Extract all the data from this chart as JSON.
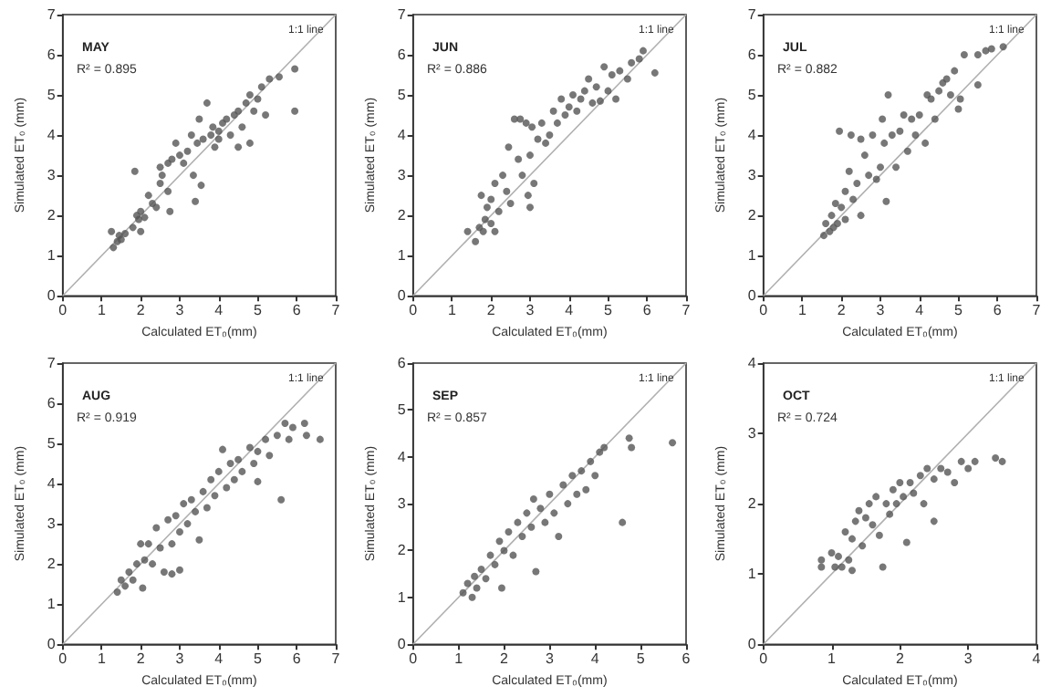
{
  "chart_data": [
    {
      "type": "scatter",
      "title": "MAY",
      "xlabel": "Calculated ET₀(mm)",
      "ylabel": "Simulated ET₀ (mm)",
      "annotations": [
        "R² = 0.895"
      ],
      "marker": "circle",
      "xlim": [
        0,
        7
      ],
      "ylim": [
        0,
        7
      ],
      "xticks": [
        0,
        1,
        2,
        3,
        4,
        5,
        6,
        7
      ],
      "yticks": [
        0,
        1,
        2,
        3,
        4,
        5,
        6,
        7
      ],
      "series": [
        {
          "type": "line",
          "name": "1:1 line",
          "color": "#b0b0b0",
          "marker": "none",
          "x": [
            0,
            7
          ],
          "values": [
            0,
            7
          ]
        },
        {
          "color": "#555555",
          "x": [
            1.3,
            1.25,
            1.4,
            1.45,
            1.5,
            1.6,
            1.8,
            1.85,
            1.9,
            1.95,
            2.0,
            2.0,
            2.1,
            2.2,
            2.3,
            2.4,
            2.5,
            2.5,
            2.55,
            2.7,
            2.7,
            2.75,
            2.8,
            2.9,
            3.0,
            3.1,
            3.2,
            3.3,
            3.35,
            3.4,
            3.45,
            3.5,
            3.55,
            3.6,
            3.7,
            3.8,
            3.85,
            3.9,
            4.0,
            4.0,
            4.1,
            4.2,
            4.3,
            4.4,
            4.5,
            4.5,
            4.6,
            4.7,
            4.8,
            4.8,
            4.9,
            5.0,
            5.1,
            5.2,
            5.3,
            5.55,
            5.95,
            5.95
          ],
          "values": [
            1.2,
            1.6,
            1.35,
            1.5,
            1.4,
            1.55,
            1.7,
            3.1,
            2.0,
            1.9,
            1.6,
            2.1,
            1.95,
            2.5,
            2.3,
            2.2,
            3.2,
            2.8,
            3.0,
            3.3,
            2.6,
            2.1,
            3.4,
            3.8,
            3.5,
            3.3,
            3.6,
            4.0,
            3.0,
            2.35,
            3.8,
            4.4,
            2.75,
            3.9,
            4.8,
            4.0,
            4.2,
            3.7,
            4.1,
            3.9,
            4.3,
            4.4,
            4.0,
            4.5,
            3.7,
            4.6,
            4.2,
            4.8,
            3.8,
            5.0,
            4.6,
            4.9,
            5.2,
            4.5,
            5.4,
            5.45,
            5.65,
            4.6
          ]
        }
      ]
    },
    {
      "type": "scatter",
      "title": "JUN",
      "xlabel": "Calculated ET₀(mm)",
      "ylabel": "Simulated ET₀ (mm)",
      "annotations": [
        "R² = 0.886"
      ],
      "marker": "circle",
      "xlim": [
        0,
        7
      ],
      "ylim": [
        0,
        7
      ],
      "xticks": [
        0,
        1,
        2,
        3,
        4,
        5,
        6,
        7
      ],
      "yticks": [
        0,
        1,
        2,
        3,
        4,
        5,
        6,
        7
      ],
      "series": [
        {
          "type": "line",
          "name": "1:1 line",
          "color": "#b0b0b0",
          "marker": "none",
          "x": [
            0,
            7
          ],
          "values": [
            0,
            7
          ]
        },
        {
          "color": "#555555",
          "x": [
            1.4,
            1.6,
            1.7,
            1.75,
            1.8,
            1.85,
            1.9,
            2.0,
            2.0,
            2.1,
            2.1,
            2.2,
            2.3,
            2.4,
            2.45,
            2.5,
            2.6,
            2.7,
            2.75,
            2.8,
            2.9,
            2.95,
            3.0,
            3.0,
            3.05,
            3.1,
            3.2,
            3.3,
            3.4,
            3.5,
            3.6,
            3.7,
            3.8,
            3.9,
            4.0,
            4.1,
            4.2,
            4.3,
            4.4,
            4.5,
            4.6,
            4.7,
            4.8,
            4.9,
            5.0,
            5.1,
            5.2,
            5.3,
            5.5,
            5.6,
            5.8,
            5.9,
            6.2
          ],
          "values": [
            1.6,
            1.35,
            1.7,
            2.5,
            1.6,
            1.9,
            2.2,
            2.4,
            1.8,
            2.8,
            1.6,
            2.1,
            3.0,
            2.6,
            3.7,
            2.3,
            4.4,
            3.4,
            4.4,
            3.0,
            4.3,
            2.5,
            3.5,
            2.2,
            4.2,
            2.8,
            3.9,
            4.3,
            3.8,
            4.0,
            4.6,
            4.3,
            4.9,
            4.5,
            4.7,
            5.0,
            4.6,
            4.9,
            5.1,
            5.4,
            4.8,
            5.2,
            4.85,
            5.7,
            5.1,
            5.5,
            4.9,
            5.6,
            5.4,
            5.8,
            5.9,
            6.1,
            5.55
          ]
        }
      ]
    },
    {
      "type": "scatter",
      "title": "JUL",
      "xlabel": "Calculated ET₀(mm)",
      "ylabel": "Simulated ET₀ (mm)",
      "annotations": [
        "R² = 0.882"
      ],
      "marker": "circle",
      "xlim": [
        0,
        7
      ],
      "ylim": [
        0,
        7
      ],
      "xticks": [
        0,
        1,
        2,
        3,
        4,
        5,
        6,
        7
      ],
      "yticks": [
        0,
        1,
        2,
        3,
        4,
        5,
        6,
        7
      ],
      "series": [
        {
          "type": "line",
          "name": "1:1 line",
          "color": "#b0b0b0",
          "marker": "none",
          "x": [
            0,
            7
          ],
          "values": [
            0,
            7
          ]
        },
        {
          "color": "#555555",
          "x": [
            1.55,
            1.6,
            1.7,
            1.75,
            1.8,
            1.85,
            1.9,
            1.95,
            2.0,
            2.1,
            2.1,
            2.2,
            2.25,
            2.3,
            2.4,
            2.5,
            2.5,
            2.6,
            2.7,
            2.8,
            2.9,
            3.0,
            3.05,
            3.1,
            3.15,
            3.2,
            3.3,
            3.4,
            3.5,
            3.6,
            3.7,
            3.8,
            3.9,
            4.0,
            4.15,
            4.2,
            4.3,
            4.4,
            4.5,
            4.6,
            4.7,
            4.8,
            4.9,
            5.0,
            5.05,
            5.15,
            5.5,
            5.5,
            5.7,
            5.85,
            6.15
          ],
          "values": [
            1.5,
            1.8,
            1.6,
            2.0,
            1.7,
            2.3,
            1.8,
            4.1,
            2.2,
            1.9,
            2.6,
            3.1,
            4.0,
            2.4,
            2.8,
            3.9,
            2.0,
            3.5,
            3.0,
            4.0,
            2.9,
            3.2,
            4.4,
            3.8,
            2.35,
            5.0,
            4.0,
            3.2,
            4.1,
            4.5,
            3.6,
            4.4,
            4.0,
            4.5,
            3.8,
            5.0,
            4.9,
            4.4,
            5.1,
            5.3,
            5.4,
            5.0,
            5.6,
            4.65,
            4.9,
            6.0,
            5.25,
            6.0,
            6.1,
            6.15,
            6.2
          ]
        }
      ]
    },
    {
      "type": "scatter",
      "title": "AUG",
      "xlabel": "Calculated ET₀(mm)",
      "ylabel": "Simulated ET₀ (mm)",
      "annotations": [
        "R² = 0.919"
      ],
      "marker": "circle",
      "xlim": [
        0,
        7
      ],
      "ylim": [
        0,
        7
      ],
      "xticks": [
        0,
        1,
        2,
        3,
        4,
        5,
        6,
        7
      ],
      "yticks": [
        0,
        1,
        2,
        3,
        4,
        5,
        6,
        7
      ],
      "series": [
        {
          "type": "line",
          "name": "1:1 line",
          "color": "#b0b0b0",
          "marker": "none",
          "x": [
            0,
            7
          ],
          "values": [
            0,
            7
          ]
        },
        {
          "color": "#555555",
          "x": [
            1.4,
            1.5,
            1.6,
            1.7,
            1.8,
            1.9,
            2.0,
            2.05,
            2.1,
            2.2,
            2.3,
            2.4,
            2.5,
            2.6,
            2.7,
            2.8,
            2.8,
            2.9,
            3.0,
            3.0,
            3.1,
            3.2,
            3.3,
            3.4,
            3.5,
            3.6,
            3.7,
            3.8,
            3.9,
            4.0,
            4.1,
            4.2,
            4.3,
            4.4,
            4.5,
            4.6,
            4.8,
            4.9,
            5.0,
            5.0,
            5.2,
            5.3,
            5.5,
            5.6,
            5.7,
            5.8,
            5.9,
            6.2,
            6.25,
            6.6
          ],
          "values": [
            1.3,
            1.6,
            1.45,
            1.8,
            1.6,
            2.0,
            2.5,
            1.4,
            2.1,
            2.5,
            2.0,
            2.9,
            2.4,
            1.8,
            3.1,
            2.5,
            1.75,
            3.2,
            1.85,
            2.8,
            3.5,
            3.0,
            3.6,
            3.3,
            2.6,
            3.8,
            3.4,
            4.1,
            3.7,
            4.3,
            4.85,
            3.9,
            4.5,
            4.1,
            4.6,
            4.3,
            4.9,
            4.5,
            4.05,
            4.8,
            5.1,
            4.7,
            5.2,
            3.6,
            5.5,
            5.1,
            5.4,
            5.5,
            5.2,
            5.1
          ]
        }
      ]
    },
    {
      "type": "scatter",
      "title": "SEP",
      "xlabel": "Calculated ET₀(mm)",
      "ylabel": "Simulated ET₀ (mm)",
      "annotations": [
        "R² = 0.857"
      ],
      "marker": "circle",
      "xlim": [
        0,
        6
      ],
      "ylim": [
        0,
        6
      ],
      "xticks": [
        0,
        1,
        2,
        3,
        4,
        5,
        6
      ],
      "yticks": [
        0,
        1,
        2,
        3,
        4,
        5,
        6
      ],
      "series": [
        {
          "type": "line",
          "name": "1:1 line",
          "color": "#b0b0b0",
          "marker": "none",
          "x": [
            0,
            6
          ],
          "values": [
            0,
            6
          ]
        },
        {
          "color": "#555555",
          "x": [
            1.1,
            1.2,
            1.3,
            1.35,
            1.4,
            1.5,
            1.6,
            1.7,
            1.8,
            1.9,
            1.95,
            2.0,
            2.1,
            2.2,
            2.3,
            2.4,
            2.5,
            2.6,
            2.65,
            2.7,
            2.8,
            2.9,
            3.0,
            3.1,
            3.2,
            3.3,
            3.4,
            3.5,
            3.6,
            3.7,
            3.8,
            3.9,
            4.0,
            4.1,
            4.2,
            4.6,
            4.75,
            4.8,
            5.7
          ],
          "values": [
            1.1,
            1.3,
            1.0,
            1.45,
            1.2,
            1.6,
            1.4,
            1.9,
            1.7,
            2.2,
            1.2,
            2.0,
            2.4,
            1.9,
            2.6,
            2.3,
            2.8,
            2.5,
            3.1,
            1.55,
            2.9,
            2.6,
            3.2,
            2.8,
            2.3,
            3.4,
            3.0,
            3.6,
            3.2,
            3.7,
            3.3,
            3.9,
            3.6,
            4.1,
            4.2,
            2.6,
            4.4,
            4.2,
            4.3
          ]
        }
      ]
    },
    {
      "type": "scatter",
      "title": "OCT",
      "xlabel": "Calculated ET₀(mm)",
      "ylabel": "Simulated ET₀ (mm)",
      "annotations": [
        "R² = 0.724"
      ],
      "marker": "circle",
      "xlim": [
        0,
        4
      ],
      "ylim": [
        0,
        4
      ],
      "xticks": [
        0,
        1,
        2,
        3,
        4
      ],
      "yticks": [
        0,
        1,
        2,
        3,
        4
      ],
      "series": [
        {
          "type": "line",
          "name": "1:1 line",
          "color": "#b0b0b0",
          "marker": "none",
          "x": [
            0,
            4
          ],
          "values": [
            0,
            4
          ]
        },
        {
          "color": "#555555",
          "x": [
            0.85,
            0.85,
            1.0,
            1.05,
            1.1,
            1.15,
            1.2,
            1.25,
            1.3,
            1.3,
            1.35,
            1.4,
            1.45,
            1.5,
            1.55,
            1.6,
            1.65,
            1.7,
            1.75,
            1.8,
            1.85,
            1.9,
            1.95,
            2.0,
            2.05,
            2.1,
            2.15,
            2.2,
            2.3,
            2.35,
            2.4,
            2.5,
            2.5,
            2.6,
            2.7,
            2.8,
            2.9,
            3.0,
            3.1,
            3.4,
            3.5
          ],
          "values": [
            1.2,
            1.1,
            1.3,
            1.1,
            1.25,
            1.1,
            1.6,
            1.2,
            1.05,
            1.5,
            1.75,
            1.9,
            1.4,
            1.8,
            2.0,
            1.7,
            2.1,
            1.55,
            1.1,
            2.0,
            1.85,
            2.2,
            2.0,
            2.3,
            2.1,
            1.45,
            2.3,
            2.15,
            2.4,
            2.0,
            2.5,
            1.75,
            2.35,
            2.5,
            2.45,
            2.3,
            2.6,
            2.5,
            2.6,
            2.65,
            2.6
          ]
        }
      ]
    }
  ]
}
